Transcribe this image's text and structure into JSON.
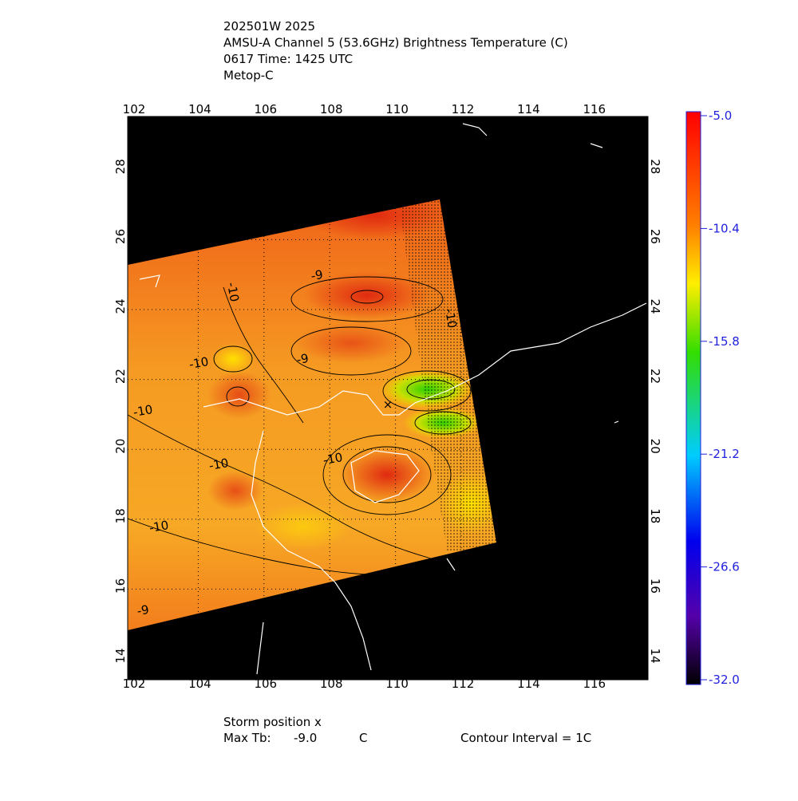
{
  "header": {
    "lines": [
      "202501W 2025",
      "AMSU-A Channel 5 (53.6GHz) Brightness Temperature (C)",
      "0617 Time: 1425 UTC",
      "Metop-C"
    ]
  },
  "map": {
    "lon_ticks": [
      102,
      104,
      106,
      108,
      110,
      112,
      114,
      116
    ],
    "lat_ticks": [
      14,
      16,
      18,
      20,
      22,
      24,
      26,
      28
    ],
    "contour_labels": [
      "-10",
      "-9",
      "-9",
      "-10",
      "-10",
      "-10",
      "-10",
      "-10",
      "-10",
      "-9"
    ]
  },
  "colorbar": {
    "labels": [
      "-5.0",
      "-10.4",
      "-15.8",
      "-21.2",
      "-26.6",
      "-32.0"
    ]
  },
  "footer": {
    "storm": "Storm position x",
    "max_label": "Max Tb:",
    "max_value": "-9.0",
    "max_unit": "C",
    "interval": "Contour Interval = 1C"
  }
}
